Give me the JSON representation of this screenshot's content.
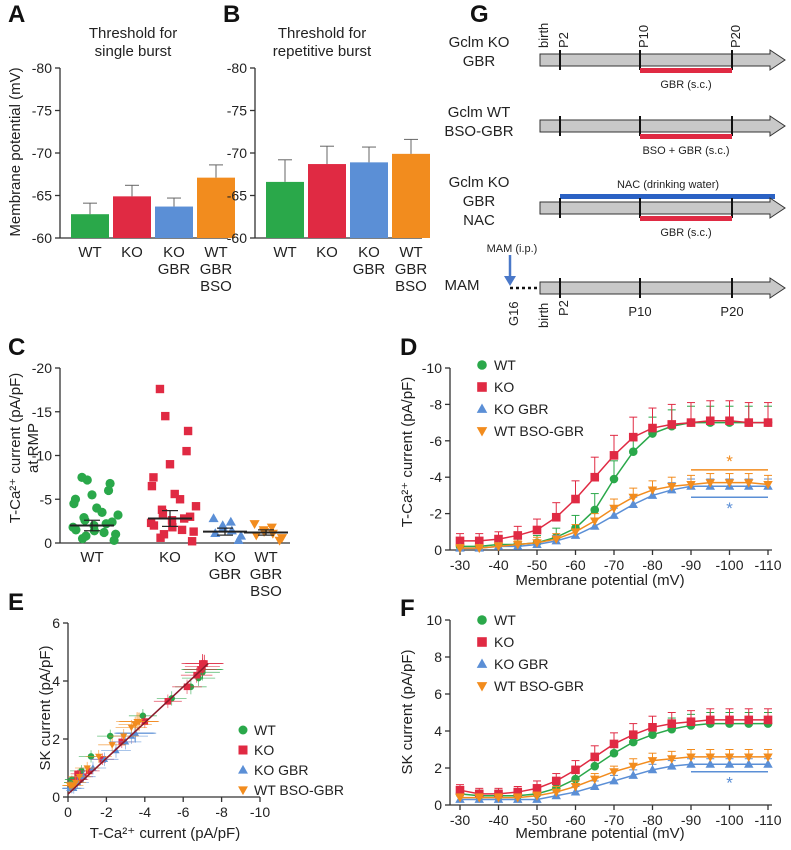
{
  "colors": {
    "WT": "#2aa84a",
    "KO": "#e02a43",
    "KO_GBR": "#5b8fd6",
    "WT_BSO_GBR": "#f28c1e",
    "NAC": "#2b62c4",
    "GBR": "#e02a43",
    "arrow_gray": "#c8c8c8",
    "MAM": "#4a78c8"
  },
  "chart_data": [
    {
      "panel": "A",
      "type": "bar",
      "title": "Threshold for single burst",
      "ylabel": "Membrane potential (mV)",
      "ylim": [
        -60,
        -80
      ],
      "yticks": [
        "-80",
        "-75",
        "-70",
        "-65",
        "-60"
      ],
      "categories": [
        [
          "WT"
        ],
        [
          "KO"
        ],
        [
          "KO",
          "GBR"
        ],
        [
          "WT",
          "GBR",
          "BSO"
        ]
      ],
      "values": [
        -62.8,
        -64.9,
        -63.7,
        -67.1
      ],
      "errors": [
        1.3,
        1.3,
        1.0,
        1.5
      ],
      "colors": [
        "#2aa84a",
        "#e02a43",
        "#5b8fd6",
        "#f28c1e"
      ]
    },
    {
      "panel": "B",
      "type": "bar",
      "title": "Threshold for repetitive burst",
      "ylim": [
        -60,
        -80
      ],
      "yticks": [
        "-80",
        "-75",
        "-70",
        "-65",
        "-60"
      ],
      "categories": [
        [
          "WT"
        ],
        [
          "KO"
        ],
        [
          "KO",
          "GBR"
        ],
        [
          "WT",
          "GBR",
          "BSO"
        ]
      ],
      "values": [
        -66.6,
        -68.7,
        -68.9,
        -69.9
      ],
      "errors": [
        2.6,
        2.1,
        1.8,
        1.7
      ],
      "colors": [
        "#2aa84a",
        "#e02a43",
        "#5b8fd6",
        "#f28c1e"
      ]
    },
    {
      "panel": "C",
      "type": "scatter",
      "ylabel": "T-Ca²⁺ current (pA/pF) at RMP",
      "ylim": [
        0,
        -20
      ],
      "yticks": [
        "-20",
        "-15",
        "-10",
        "-5",
        "0"
      ],
      "categories": [
        [
          "WT"
        ],
        [
          "KO"
        ],
        [
          "KO",
          "GBR"
        ],
        [
          "WT",
          "GBR",
          "BSO"
        ]
      ],
      "means": [
        -2.0,
        -2.8,
        -1.3,
        -1.2
      ],
      "sems": [
        0.6,
        0.9,
        0.4,
        0.3
      ],
      "markers": [
        "circle",
        "square",
        "triangle-up",
        "triangle-down"
      ],
      "points": [
        [
          -0.3,
          -0.5,
          -0.8,
          -1.0,
          -1.2,
          -1.4,
          -1.5,
          -1.8,
          -2.0,
          -2.2,
          -2.4,
          -2.6,
          -2.9,
          -3.2,
          -3.5,
          -4.0,
          -4.5,
          -5.0,
          -5.5,
          -6.0,
          -6.8,
          -7.2,
          -7.5
        ],
        [
          -0.2,
          -0.6,
          -1.0,
          -1.3,
          -1.5,
          -1.8,
          -2.0,
          -2.3,
          -2.6,
          -2.8,
          -3.0,
          -3.4,
          -3.8,
          -4.2,
          -5.0,
          -5.6,
          -6.5,
          -7.5,
          -9.0,
          -10.5,
          -12.8,
          -14.5,
          -17.6
        ],
        [
          -0.3,
          -0.8,
          -1.1,
          -1.4,
          -1.7,
          -2.0,
          -2.4,
          -2.8
        ],
        [
          -0.3,
          -0.6,
          -0.9,
          -1.1,
          -1.3,
          -1.5,
          -1.8,
          -2.2
        ]
      ]
    },
    {
      "panel": "D",
      "type": "line",
      "xlabel": "Membrane potential (mV)",
      "ylabel": "T-Ca²⁺ current (pA/pF)",
      "xlim": [
        -30,
        -110
      ],
      "ylim": [
        0,
        -10
      ],
      "xticks": [
        "-30",
        "-40",
        "-50",
        "-60",
        "-70",
        "-80",
        "-90",
        "-100",
        "-110"
      ],
      "yticks": [
        "-10",
        "-8",
        "-6",
        "-4",
        "-2",
        "0"
      ],
      "x": [
        -30,
        -35,
        -40,
        -45,
        -50,
        -55,
        -60,
        -65,
        -70,
        -75,
        -80,
        -85,
        -90,
        -95,
        -100,
        -105,
        -110
      ],
      "series": [
        {
          "name": "WT",
          "marker": "circle",
          "values": [
            -0.2,
            -0.2,
            -0.3,
            -0.3,
            -0.4,
            -0.7,
            -1.2,
            -2.2,
            -3.9,
            -5.4,
            -6.4,
            -6.8,
            -7.0,
            -7.0,
            -7.0,
            -7.0,
            -7.0
          ],
          "err": [
            0.3,
            0.3,
            0.3,
            0.3,
            0.4,
            0.5,
            0.7,
            0.9,
            1.0,
            1.0,
            0.9,
            0.9,
            0.9,
            0.9,
            0.9,
            0.9,
            0.9
          ]
        },
        {
          "name": "KO",
          "marker": "square",
          "values": [
            -0.5,
            -0.5,
            -0.6,
            -0.8,
            -1.1,
            -1.8,
            -2.8,
            -4.0,
            -5.2,
            -6.2,
            -6.7,
            -6.9,
            -7.0,
            -7.1,
            -7.1,
            -7.0,
            -7.0
          ],
          "err": [
            0.4,
            0.4,
            0.4,
            0.5,
            0.6,
            0.8,
            1.0,
            1.1,
            1.1,
            1.1,
            1.1,
            1.1,
            1.1,
            1.1,
            1.1,
            1.1,
            1.1
          ]
        },
        {
          "name": "KO GBR",
          "marker": "triangle-up",
          "values": [
            -0.1,
            -0.1,
            -0.2,
            -0.2,
            -0.3,
            -0.5,
            -0.8,
            -1.3,
            -1.9,
            -2.5,
            -3.0,
            -3.3,
            -3.5,
            -3.5,
            -3.5,
            -3.5,
            -3.5
          ],
          "err": [
            0.2,
            0.2,
            0.2,
            0.2,
            0.2,
            0.3,
            0.3,
            0.4,
            0.4,
            0.4,
            0.4,
            0.4,
            0.4,
            0.4,
            0.4,
            0.4,
            0.4
          ]
        },
        {
          "name": "WT BSO-GBR",
          "marker": "triangle-down",
          "values": [
            -0.1,
            -0.1,
            -0.2,
            -0.3,
            -0.4,
            -0.6,
            -1.0,
            -1.6,
            -2.3,
            -2.9,
            -3.3,
            -3.5,
            -3.6,
            -3.7,
            -3.7,
            -3.7,
            -3.6
          ],
          "err": [
            0.2,
            0.2,
            0.2,
            0.2,
            0.3,
            0.3,
            0.4,
            0.4,
            0.5,
            0.5,
            0.5,
            0.5,
            0.5,
            0.5,
            0.5,
            0.5,
            0.5
          ]
        }
      ],
      "sig_lines": [
        {
          "color": "#f28c1e",
          "y": -4.4,
          "x_from": -90,
          "x_to": -110,
          "label": "*"
        },
        {
          "color": "#5b8fd6",
          "y": -2.9,
          "x_from": -90,
          "x_to": -110,
          "label": "*"
        }
      ]
    },
    {
      "panel": "E",
      "type": "scatter",
      "xlabel": "T-Ca²⁺ current (pA/pF)",
      "ylabel": "SK current (pA/pF)",
      "xlim": [
        0,
        -10
      ],
      "ylim": [
        0,
        6
      ],
      "xticks": [
        "0",
        "-2",
        "-4",
        "-6",
        "-8",
        "-10"
      ],
      "yticks": [
        "0",
        "2",
        "4",
        "6"
      ],
      "fit_line": {
        "x0": 0,
        "y0": 0.1,
        "x1": -7.3,
        "y1": 4.6
      }
    },
    {
      "panel": "F",
      "type": "line",
      "xlabel": "Membrane potential (mV)",
      "ylabel": "SK current (pA/pF)",
      "xlim": [
        -30,
        -110
      ],
      "ylim": [
        0,
        10
      ],
      "xticks": [
        "-30",
        "-40",
        "-50",
        "-60",
        "-70",
        "-80",
        "-90",
        "-100",
        "-110"
      ],
      "yticks": [
        "0",
        "2",
        "4",
        "6",
        "8",
        "10"
      ],
      "x": [
        -30,
        -35,
        -40,
        -45,
        -50,
        -55,
        -60,
        -65,
        -70,
        -75,
        -80,
        -85,
        -90,
        -95,
        -100,
        -105,
        -110
      ],
      "series": [
        {
          "name": "WT",
          "marker": "circle",
          "values": [
            0.6,
            0.5,
            0.5,
            0.5,
            0.6,
            0.9,
            1.4,
            2.1,
            2.8,
            3.4,
            3.8,
            4.1,
            4.3,
            4.4,
            4.4,
            4.4,
            4.4
          ],
          "err": [
            0.3,
            0.3,
            0.3,
            0.3,
            0.3,
            0.4,
            0.5,
            0.5,
            0.6,
            0.6,
            0.6,
            0.6,
            0.6,
            0.6,
            0.6,
            0.6,
            0.6
          ]
        },
        {
          "name": "KO",
          "marker": "square",
          "values": [
            0.8,
            0.6,
            0.6,
            0.7,
            0.9,
            1.3,
            1.9,
            2.6,
            3.3,
            3.8,
            4.2,
            4.4,
            4.5,
            4.6,
            4.6,
            4.6,
            4.6
          ],
          "err": [
            0.3,
            0.3,
            0.3,
            0.3,
            0.4,
            0.4,
            0.5,
            0.6,
            0.6,
            0.6,
            0.6,
            0.6,
            0.6,
            0.6,
            0.6,
            0.6,
            0.6
          ]
        },
        {
          "name": "KO GBR",
          "marker": "triangle-up",
          "values": [
            0.3,
            0.3,
            0.3,
            0.3,
            0.3,
            0.5,
            0.7,
            1.0,
            1.3,
            1.6,
            1.9,
            2.1,
            2.2,
            2.2,
            2.2,
            2.2,
            2.2
          ],
          "err": [
            0.2,
            0.2,
            0.2,
            0.2,
            0.2,
            0.2,
            0.3,
            0.3,
            0.3,
            0.3,
            0.3,
            0.3,
            0.3,
            0.3,
            0.3,
            0.3,
            0.3
          ]
        },
        {
          "name": "WT BSO-GBR",
          "marker": "triangle-down",
          "values": [
            0.4,
            0.4,
            0.4,
            0.4,
            0.5,
            0.7,
            1.0,
            1.4,
            1.8,
            2.1,
            2.4,
            2.5,
            2.6,
            2.6,
            2.6,
            2.6,
            2.6
          ],
          "err": [
            0.2,
            0.2,
            0.2,
            0.2,
            0.2,
            0.3,
            0.3,
            0.3,
            0.3,
            0.4,
            0.4,
            0.4,
            0.4,
            0.4,
            0.4,
            0.4,
            0.4
          ]
        }
      ],
      "sig_lines": [
        {
          "color": "#5b8fd6",
          "y": 1.8,
          "x_from": -90,
          "x_to": -110,
          "label": "*"
        }
      ]
    }
  ],
  "panelG": {
    "rows": [
      {
        "title": [
          "Gclm KO",
          "GBR"
        ],
        "treatment": "GBR (s.c.)"
      },
      {
        "title": [
          "Gclm WT",
          "BSO-GBR"
        ],
        "treatment": "BSO + GBR (s.c.)"
      },
      {
        "title": [
          "Gclm KO",
          "GBR",
          "NAC"
        ],
        "nac": "NAC (drinking water)",
        "treatment": "GBR (s.c.)"
      },
      {
        "title": [
          "MAM"
        ],
        "mam_label": "MAM (i.p.)",
        "g16": "G16"
      }
    ],
    "ticks": {
      "birth": "birth",
      "p2": "P2",
      "p10": "P10",
      "p20": "P20"
    }
  },
  "panel_labels": [
    "A",
    "B",
    "C",
    "D",
    "E",
    "F",
    "G"
  ]
}
